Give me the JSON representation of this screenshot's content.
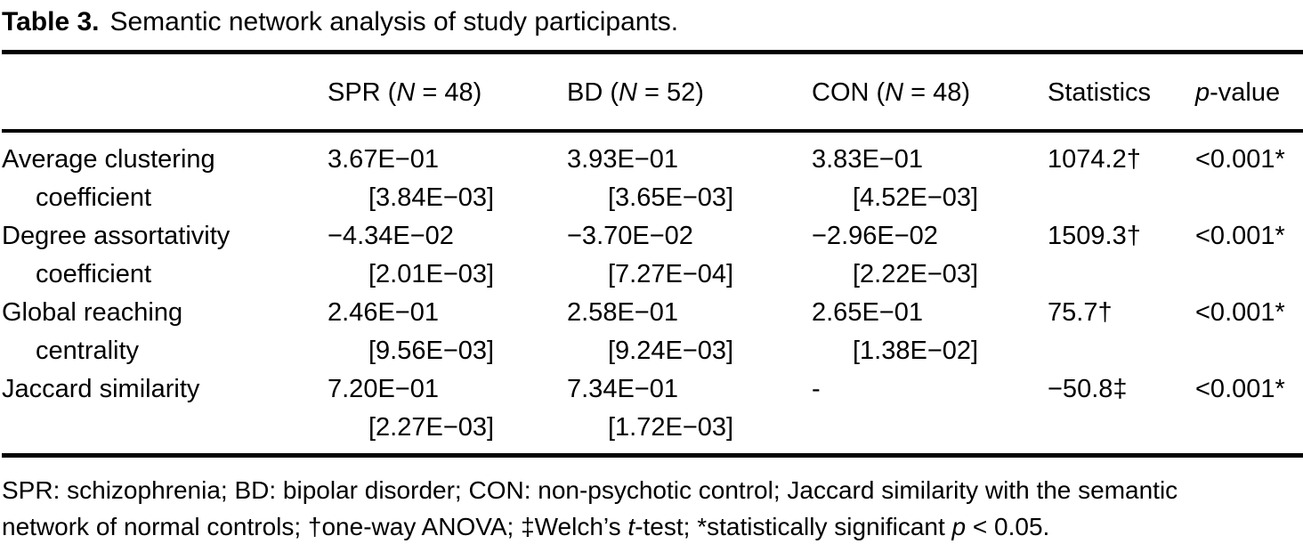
{
  "title": {
    "label": "Table 3.",
    "text": "Semantic network analysis of study participants."
  },
  "table": {
    "headers": {
      "metric": "",
      "spr": "SPR (<i>N</i> = 48)",
      "bd": "BD (<i>N</i> = 52)",
      "con": "CON (<i>N</i> = 48)",
      "statistics": "Statistics",
      "p_value": "<i>p</i>-value"
    },
    "rows": [
      {
        "label_line1": "Average clustering",
        "label_line2": "coefficient",
        "spr": "3.67E−01",
        "spr_sd": "[3.84E−03]",
        "bd": "3.93E−01",
        "bd_sd": "[3.65E−03]",
        "con": "3.83E−01",
        "con_sd": "[4.52E−03]",
        "statistic": "1074.2†",
        "p": "<0.001*"
      },
      {
        "label_line1": "Degree assortativity",
        "label_line2": "coefficient",
        "spr": "−4.34E−02",
        "spr_sd": "[2.01E−03]",
        "bd": "−3.70E−02",
        "bd_sd": "[7.27E−04]",
        "con": "−2.96E−02",
        "con_sd": "[2.22E−03]",
        "statistic": "1509.3†",
        "p": "<0.001*"
      },
      {
        "label_line1": "Global reaching",
        "label_line2": "centrality",
        "spr": "2.46E−01",
        "spr_sd": "[9.56E−03]",
        "bd": "2.58E−01",
        "bd_sd": "[9.24E−03]",
        "con": "2.65E−01",
        "con_sd": "[1.38E−02]",
        "statistic": "75.7†",
        "p": "<0.001*"
      },
      {
        "label_line1": "Jaccard similarity",
        "label_line2": "",
        "spr": "7.20E−01",
        "spr_sd": "[2.27E−03]",
        "bd": "7.34E−01",
        "bd_sd": "[1.72E−03]",
        "con": "-",
        "con_sd": "",
        "statistic": "−50.8‡",
        "p": "<0.001*"
      }
    ]
  },
  "footnote": {
    "line1": "SPR: schizophrenia; BD: bipolar disorder; CON: non-psychotic control; Jaccard similarity with the semantic",
    "line2": "network of normal controls; †one-way ANOVA; ‡Welch’s <i>t</i>-test; *statistically significant <i>p</i> < 0.05."
  }
}
